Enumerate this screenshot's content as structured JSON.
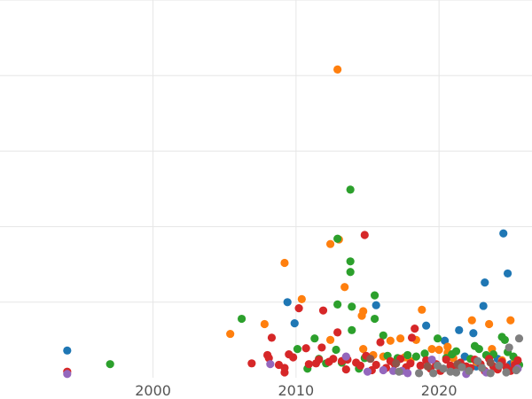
{
  "chart_data": {
    "type": "scatter",
    "title": "",
    "xlabel": "",
    "ylabel": "",
    "xlim": [
      1989.3,
      2026.5
    ],
    "ylim": [
      0,
      50
    ],
    "grid": true,
    "x_ticks": [
      {
        "value": 2000,
        "label": "2000"
      },
      {
        "value": 2010,
        "label": "2010"
      },
      {
        "value": 2020,
        "label": "2020"
      }
    ],
    "y_gridlines": [
      10,
      20,
      30,
      40,
      50
    ],
    "series": [
      {
        "color": "#1f77b4",
        "points": [
          [
            1994.0,
            3.6
          ],
          [
            2009.4,
            10.0
          ],
          [
            2009.9,
            7.2
          ],
          [
            2015.6,
            9.6
          ],
          [
            2019.1,
            6.9
          ],
          [
            2020.4,
            4.9
          ],
          [
            2021.4,
            6.3
          ],
          [
            2022.4,
            5.9
          ],
          [
            2023.1,
            9.5
          ],
          [
            2023.2,
            12.6
          ],
          [
            2024.5,
            19.1
          ],
          [
            2024.8,
            13.8
          ],
          [
            2021.8,
            2.8
          ],
          [
            2022.6,
            1.5
          ],
          [
            2024.1,
            2.5
          ],
          [
            2025.0,
            1.8
          ]
        ]
      },
      {
        "color": "#ff7f0e",
        "points": [
          [
            2005.4,
            5.8
          ],
          [
            2007.8,
            7.1
          ],
          [
            2009.2,
            15.2
          ],
          [
            2010.4,
            10.4
          ],
          [
            2012.4,
            17.7
          ],
          [
            2012.4,
            5.0
          ],
          [
            2012.9,
            40.8
          ],
          [
            2013.0,
            18.3
          ],
          [
            2013.4,
            12.0
          ],
          [
            2014.6,
            8.2
          ],
          [
            2014.7,
            8.8
          ],
          [
            2014.7,
            3.8
          ],
          [
            2015.4,
            3.0
          ],
          [
            2016.1,
            2.8
          ],
          [
            2016.6,
            4.9
          ],
          [
            2017.3,
            5.2
          ],
          [
            2017.6,
            2.7
          ],
          [
            2018.0,
            2.2
          ],
          [
            2018.4,
            5.0
          ],
          [
            2018.8,
            9.0
          ],
          [
            2019.5,
            3.8
          ],
          [
            2020.0,
            3.7
          ],
          [
            2020.6,
            4.1
          ],
          [
            2020.6,
            3.3
          ],
          [
            2021.0,
            2.6
          ],
          [
            2022.3,
            7.6
          ],
          [
            2022.6,
            2.1
          ],
          [
            2023.5,
            7.1
          ],
          [
            2023.7,
            3.8
          ],
          [
            2025.0,
            7.6
          ],
          [
            2024.4,
            2.3
          ],
          [
            2025.3,
            2.0
          ]
        ]
      },
      {
        "color": "#2ca02c",
        "points": [
          [
            1997.0,
            1.8
          ],
          [
            2006.2,
            7.8
          ],
          [
            2010.1,
            3.8
          ],
          [
            2010.8,
            1.2
          ],
          [
            2011.3,
            5.2
          ],
          [
            2011.6,
            2.5
          ],
          [
            2012.1,
            1.9
          ],
          [
            2012.8,
            3.7
          ],
          [
            2012.9,
            18.4
          ],
          [
            2012.9,
            9.7
          ],
          [
            2013.2,
            2.0
          ],
          [
            2013.8,
            15.4
          ],
          [
            2013.8,
            14.0
          ],
          [
            2013.8,
            24.9
          ],
          [
            2013.9,
            9.4
          ],
          [
            2013.9,
            6.3
          ],
          [
            2014.4,
            1.2
          ],
          [
            2014.8,
            2.6
          ],
          [
            2015.5,
            10.9
          ],
          [
            2015.5,
            7.8
          ],
          [
            2016.1,
            5.6
          ],
          [
            2016.4,
            2.9
          ],
          [
            2017.1,
            2.6
          ],
          [
            2017.8,
            3.0
          ],
          [
            2018.4,
            2.8
          ],
          [
            2019.0,
            3.2
          ],
          [
            2019.9,
            5.2
          ],
          [
            2020.5,
            2.6
          ],
          [
            2020.9,
            3.1
          ],
          [
            2021.2,
            3.5
          ],
          [
            2022.2,
            2.5
          ],
          [
            2022.5,
            4.2
          ],
          [
            2022.8,
            3.8
          ],
          [
            2023.3,
            3.0
          ],
          [
            2023.8,
            3.1
          ],
          [
            2024.4,
            5.4
          ],
          [
            2024.6,
            5.0
          ],
          [
            2024.8,
            3.4
          ],
          [
            2025.2,
            2.8
          ],
          [
            2025.6,
            1.7
          ]
        ]
      },
      {
        "color": "#d62728",
        "points": [
          [
            1994.0,
            0.8
          ],
          [
            2006.9,
            1.9
          ],
          [
            2008.0,
            3.0
          ],
          [
            2008.1,
            2.6
          ],
          [
            2008.3,
            5.3
          ],
          [
            2008.8,
            1.7
          ],
          [
            2009.2,
            0.7
          ],
          [
            2009.2,
            1.3
          ],
          [
            2009.5,
            3.1
          ],
          [
            2009.8,
            2.7
          ],
          [
            2010.2,
            9.2
          ],
          [
            2010.7,
            3.9
          ],
          [
            2010.9,
            1.8
          ],
          [
            2011.4,
            1.9
          ],
          [
            2011.6,
            2.4
          ],
          [
            2011.8,
            4.0
          ],
          [
            2011.9,
            8.9
          ],
          [
            2012.3,
            2.1
          ],
          [
            2012.6,
            2.5
          ],
          [
            2012.9,
            6.0
          ],
          [
            2013.2,
            2.2
          ],
          [
            2013.5,
            1.1
          ],
          [
            2013.6,
            2.4
          ],
          [
            2014.2,
            2.0
          ],
          [
            2014.5,
            1.6
          ],
          [
            2014.8,
            18.9
          ],
          [
            2014.9,
            2.9
          ],
          [
            2015.3,
            1.0
          ],
          [
            2015.6,
            1.7
          ],
          [
            2015.9,
            4.7
          ],
          [
            2016.3,
            1.3
          ],
          [
            2016.6,
            2.2
          ],
          [
            2016.9,
            1.8
          ],
          [
            2017.3,
            2.5
          ],
          [
            2017.7,
            1.4
          ],
          [
            2018.0,
            1.9
          ],
          [
            2018.1,
            5.3
          ],
          [
            2018.3,
            6.5
          ],
          [
            2018.7,
            1.6
          ],
          [
            2019.1,
            2.3
          ],
          [
            2019.4,
            1.2
          ],
          [
            2019.8,
            1.8
          ],
          [
            2020.1,
            0.9
          ],
          [
            2020.5,
            2.4
          ],
          [
            2020.8,
            1.6
          ],
          [
            2021.1,
            1.1
          ],
          [
            2021.5,
            2.0
          ],
          [
            2021.9,
            1.5
          ],
          [
            2022.2,
            1.3
          ],
          [
            2022.5,
            2.4
          ],
          [
            2022.9,
            1.8
          ],
          [
            2023.2,
            0.9
          ],
          [
            2023.5,
            2.5
          ],
          [
            2023.8,
            1.5
          ],
          [
            2024.1,
            1.1
          ],
          [
            2024.4,
            2.1
          ],
          [
            2024.7,
            1.4
          ],
          [
            2025.0,
            0.9
          ],
          [
            2025.3,
            1.7
          ],
          [
            2025.5,
            2.3
          ]
        ]
      },
      {
        "color": "#9467bd",
        "points": [
          [
            1994.0,
            0.5
          ],
          [
            2008.2,
            1.8
          ],
          [
            2013.5,
            2.8
          ],
          [
            2015.0,
            0.8
          ],
          [
            2016.1,
            1.0
          ],
          [
            2016.8,
            0.9
          ],
          [
            2017.4,
            0.9
          ],
          [
            2017.8,
            0.6
          ],
          [
            2019.5,
            2.4
          ],
          [
            2021.9,
            0.5
          ],
          [
            2023.3,
            0.7
          ],
          [
            2025.5,
            1.2
          ]
        ]
      },
      {
        "color": "#8c564b",
        "points": [
          [
            2015.2,
            2.5
          ],
          [
            2017.0,
            1.9
          ],
          [
            2019.2,
            1.5
          ],
          [
            2021.3,
            1.8
          ],
          [
            2023.6,
            2.0
          ]
        ]
      },
      {
        "color": "#7f7f7f",
        "points": [
          [
            2017.2,
            0.8
          ],
          [
            2018.6,
            0.6
          ],
          [
            2019.6,
            0.6
          ],
          [
            2019.9,
            1.6
          ],
          [
            2020.3,
            1.2
          ],
          [
            2021.2,
            0.7
          ],
          [
            2021.6,
            1.4
          ],
          [
            2022.1,
            0.9
          ],
          [
            2022.7,
            2.2
          ],
          [
            2023.0,
            1.3
          ],
          [
            2023.6,
            0.6
          ],
          [
            2024.2,
            1.6
          ],
          [
            2024.7,
            0.7
          ],
          [
            2024.9,
            4.0
          ],
          [
            2025.6,
            5.2
          ],
          [
            2025.4,
            1.0
          ],
          [
            2020.8,
            0.8
          ]
        ]
      }
    ]
  }
}
